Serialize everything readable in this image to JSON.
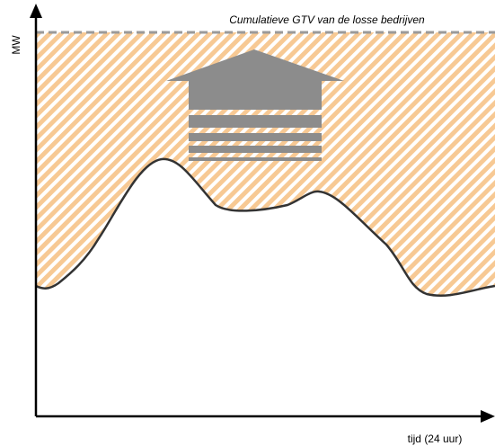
{
  "y_axis_label": "MW",
  "x_axis_label": "tijd (24 uur)",
  "annotation": "Cumulatieve GTV van de losse bedrijven"
}
